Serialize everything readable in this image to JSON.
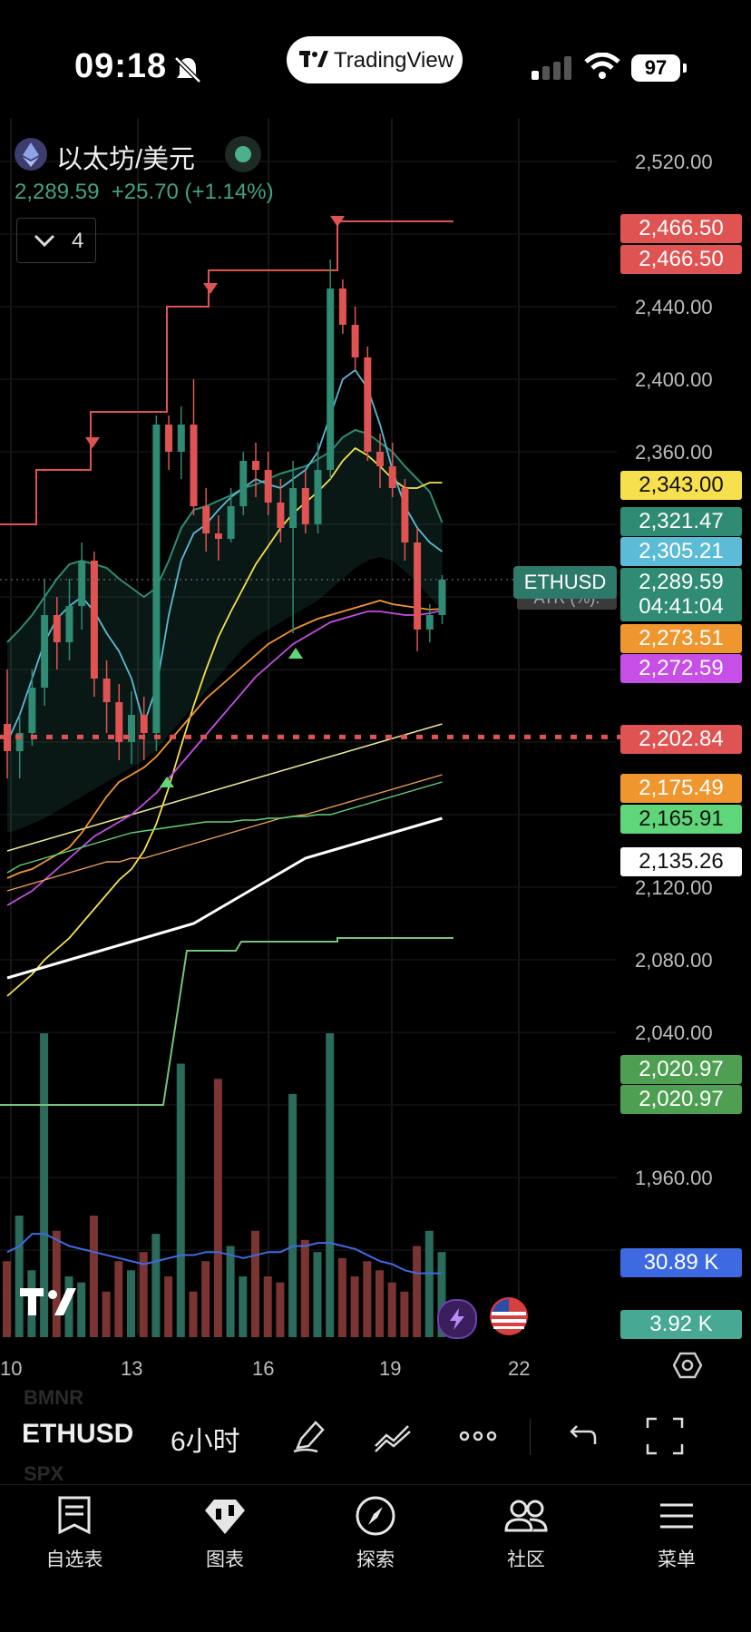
{
  "status_bar": {
    "time": "09:18",
    "battery": "97",
    "brand": "TradingView"
  },
  "header": {
    "symbol_title": "以太坊/美元",
    "last_price": "2,289.59",
    "change": "+25.70",
    "change_pct": "(+1.14%)",
    "indicators_collapsed_count": "4"
  },
  "ethusd_tag": "ETHUSD",
  "atr_label": "ATR (%):",
  "price_tags": [
    {
      "value": "2,466.50",
      "color": "#e05353"
    },
    {
      "value": "2,466.50",
      "color": "#e05353"
    },
    {
      "value": "2,343.00",
      "color": "#f7e04d",
      "text_color": "#111"
    },
    {
      "value": "2,321.47",
      "color": "#2f8b73"
    },
    {
      "value": "2,305.21",
      "color": "#5cbbd6"
    },
    {
      "value": "2,289.59",
      "color": "#2f8b73"
    },
    {
      "value": "04:41:04",
      "color": "#2f8b73"
    },
    {
      "value": "2,273.51",
      "color": "#f0962f"
    },
    {
      "value": "2,272.59",
      "color": "#c74ee6"
    },
    {
      "value": "2,202.84",
      "color": "#e05353"
    },
    {
      "value": "2,175.49",
      "color": "#f0962f"
    },
    {
      "value": "2,165.91",
      "color": "#5fd67a",
      "text_color": "#111"
    },
    {
      "value": "2,135.26",
      "color": "#ffffff",
      "text_color": "#111"
    },
    {
      "value": "2,020.97",
      "color": "#4f9f52"
    },
    {
      "value": "2,020.97",
      "color": "#4f9f52"
    },
    {
      "value": "30.89 K",
      "color": "#3d6ae0"
    },
    {
      "value": "3.92 K",
      "color": "#47a894"
    }
  ],
  "toolbar": {
    "symbol": "ETHUSD",
    "interval": "6小时"
  },
  "ghost_symbols": [
    "BMNR",
    "SPX"
  ],
  "nav": [
    {
      "label": "自选表",
      "icon": "watchlist-icon"
    },
    {
      "label": "图表",
      "icon": "chart-icon"
    },
    {
      "label": "探索",
      "icon": "compass-icon"
    },
    {
      "label": "社区",
      "icon": "community-icon"
    },
    {
      "label": "菜单",
      "icon": "menu-icon"
    }
  ],
  "chart_data": {
    "type": "candlestick",
    "y_axis_labels": [
      "2,520.00",
      "2,440.00",
      "2,400.00",
      "2,360.00",
      "2,120.00",
      "2,080.00",
      "2,040.00",
      "1,960.00"
    ],
    "x_axis_labels": [
      "10",
      "13",
      "16",
      "19",
      "22"
    ],
    "grid": true,
    "candles": [
      {
        "o": 2210,
        "h": 2240,
        "l": 2180,
        "c": 2195
      },
      {
        "o": 2195,
        "h": 2215,
        "l": 2180,
        "c": 2205
      },
      {
        "o": 2205,
        "h": 2240,
        "l": 2198,
        "c": 2230
      },
      {
        "o": 2230,
        "h": 2290,
        "l": 2220,
        "c": 2270
      },
      {
        "o": 2270,
        "h": 2280,
        "l": 2240,
        "c": 2255
      },
      {
        "o": 2255,
        "h": 2290,
        "l": 2245,
        "c": 2275
      },
      {
        "o": 2275,
        "h": 2310,
        "l": 2262,
        "c": 2300
      },
      {
        "o": 2300,
        "h": 2305,
        "l": 2225,
        "c": 2235
      },
      {
        "o": 2235,
        "h": 2245,
        "l": 2205,
        "c": 2222
      },
      {
        "o": 2222,
        "h": 2232,
        "l": 2190,
        "c": 2200
      },
      {
        "o": 2200,
        "h": 2228,
        "l": 2188,
        "c": 2215
      },
      {
        "o": 2215,
        "h": 2225,
        "l": 2190,
        "c": 2205
      },
      {
        "o": 2205,
        "h": 2380,
        "l": 2195,
        "c": 2375
      },
      {
        "o": 2375,
        "h": 2380,
        "l": 2350,
        "c": 2360
      },
      {
        "o": 2360,
        "h": 2385,
        "l": 2345,
        "c": 2375
      },
      {
        "o": 2375,
        "h": 2400,
        "l": 2325,
        "c": 2330
      },
      {
        "o": 2330,
        "h": 2340,
        "l": 2305,
        "c": 2315
      },
      {
        "o": 2315,
        "h": 2325,
        "l": 2300,
        "c": 2312
      },
      {
        "o": 2312,
        "h": 2340,
        "l": 2310,
        "c": 2330
      },
      {
        "o": 2330,
        "h": 2360,
        "l": 2325,
        "c": 2355
      },
      {
        "o": 2355,
        "h": 2365,
        "l": 2335,
        "c": 2350
      },
      {
        "o": 2350,
        "h": 2360,
        "l": 2325,
        "c": 2332
      },
      {
        "o": 2332,
        "h": 2345,
        "l": 2310,
        "c": 2318
      },
      {
        "o": 2318,
        "h": 2355,
        "l": 2260,
        "c": 2340
      },
      {
        "o": 2340,
        "h": 2350,
        "l": 2315,
        "c": 2320
      },
      {
        "o": 2320,
        "h": 2365,
        "l": 2315,
        "c": 2350
      },
      {
        "o": 2350,
        "h": 2466,
        "l": 2345,
        "c": 2450
      },
      {
        "o": 2450,
        "h": 2455,
        "l": 2425,
        "c": 2430
      },
      {
        "o": 2430,
        "h": 2440,
        "l": 2405,
        "c": 2412
      },
      {
        "o": 2412,
        "h": 2418,
        "l": 2355,
        "c": 2360
      },
      {
        "o": 2360,
        "h": 2370,
        "l": 2340,
        "c": 2352
      },
      {
        "o": 2352,
        "h": 2365,
        "l": 2335,
        "c": 2340
      },
      {
        "o": 2340,
        "h": 2345,
        "l": 2300,
        "c": 2310
      },
      {
        "o": 2310,
        "h": 2318,
        "l": 2250,
        "c": 2262
      },
      {
        "o": 2262,
        "h": 2276,
        "l": 2255,
        "c": 2270
      },
      {
        "o": 2270,
        "h": 2292,
        "l": 2265,
        "c": 2289.59
      }
    ],
    "horizontal_line": 2202.84,
    "volume_bars": [
      0.25,
      0.4,
      0.22,
      1.0,
      0.35,
      0.2,
      0.18,
      0.4,
      0.15,
      0.25,
      0.22,
      0.28,
      0.34,
      0.2,
      0.9,
      0.15,
      0.25,
      0.85,
      0.3,
      0.2,
      0.35,
      0.2,
      0.18,
      0.8,
      0.32,
      0.28,
      1.0,
      0.26,
      0.2,
      0.25,
      0.22,
      0.18,
      0.15,
      0.3,
      0.35,
      0.28
    ]
  }
}
